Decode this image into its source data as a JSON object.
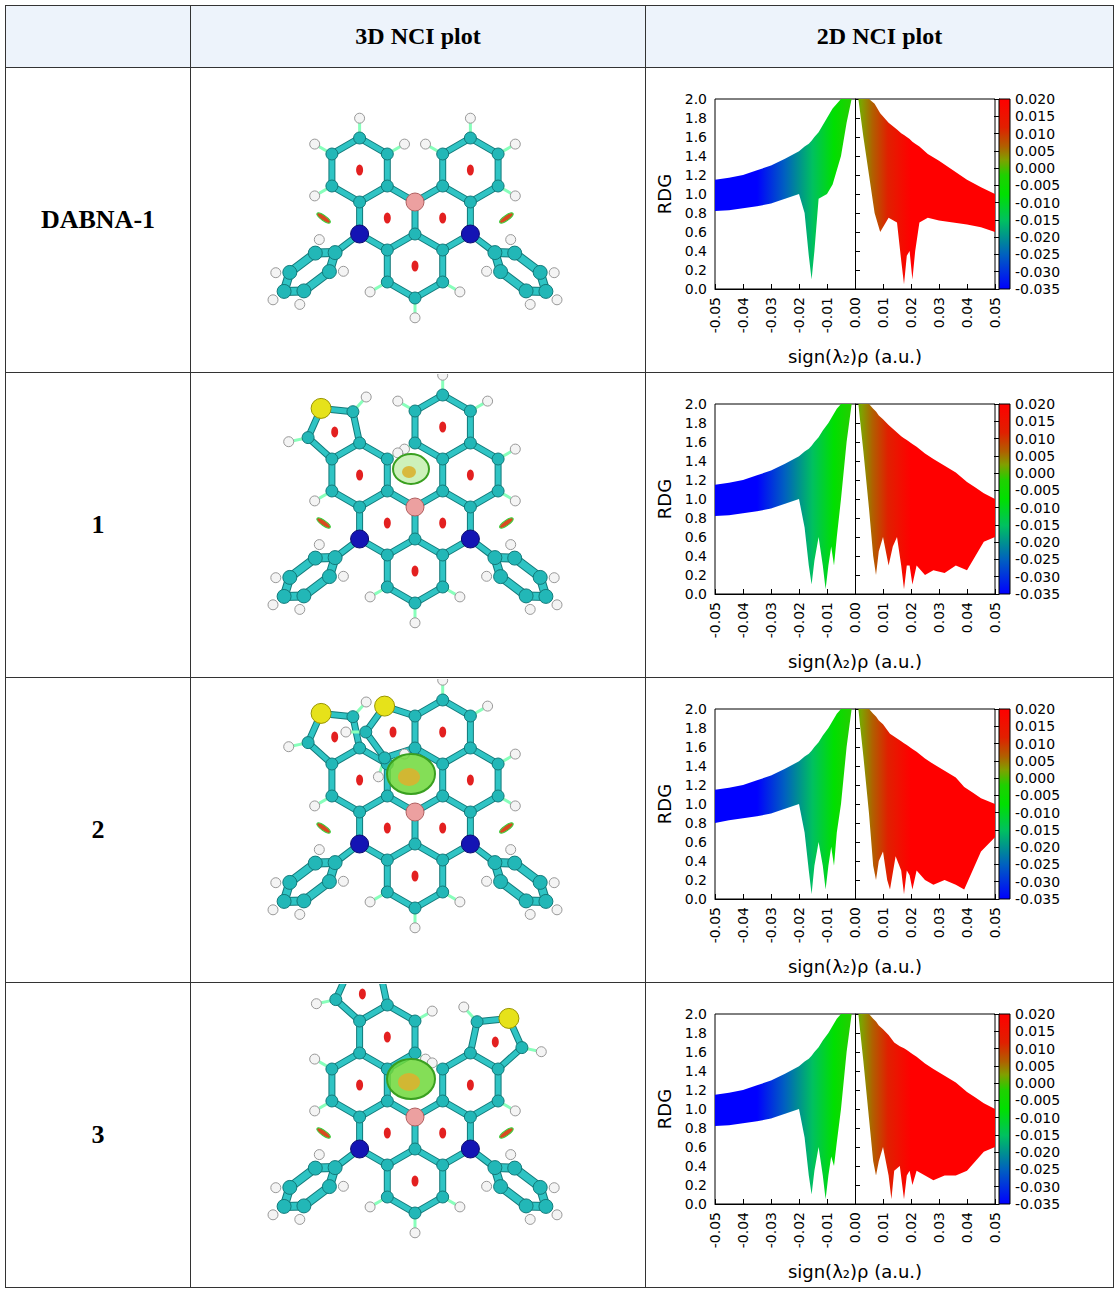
{
  "table": {
    "columns": [
      "3D NCI plot",
      "2D NCI plot"
    ],
    "rows": [
      "DABNA-1",
      "1",
      "2",
      "3"
    ]
  },
  "chart_data": [
    {
      "type": "area",
      "xlabel": "sign(λ₂)ρ (a.u.)",
      "ylabel": "RDG",
      "xlim": [
        -0.05,
        0.05
      ],
      "xticks": [
        -0.05,
        -0.04,
        -0.03,
        -0.02,
        -0.01,
        {
          "value": 0,
          "label": "0.00"
        },
        0.01,
        0.02,
        0.03,
        0.04,
        0.05
      ],
      "ylim": [
        0,
        2
      ],
      "yticks": [
        {
          "value": 0,
          "label": "0.0"
        },
        0.2,
        0.4,
        0.6,
        0.8,
        {
          "value": 1,
          "label": "1.0"
        },
        1.2,
        1.4,
        1.6,
        1.8,
        {
          "value": 2,
          "label": "2.0"
        }
      ],
      "colorbar": {
        "range": [
          -0.035,
          0.02
        ],
        "ticks": [
          {
            "value": 0.02,
            "label": "0.020"
          },
          {
            "value": 0.015,
            "label": "0.015"
          },
          {
            "value": 0.01,
            "label": "0.010"
          },
          {
            "value": 0.005,
            "label": "0.005"
          },
          {
            "value": 0,
            "label": "0.000"
          },
          {
            "value": -0.005,
            "label": "-0.005"
          },
          {
            "value": -0.01,
            "label": "-0.010"
          },
          {
            "value": -0.015,
            "label": "-0.015"
          },
          {
            "value": -0.02,
            "label": "-0.020"
          },
          {
            "value": -0.025,
            "label": "-0.025"
          },
          {
            "value": -0.03,
            "label": "-0.030"
          },
          {
            "value": -0.035,
            "label": "-0.035"
          }
        ]
      },
      "bands": [
        {
          "x": [
            -0.05,
            -0.045,
            -0.04,
            -0.035,
            -0.03,
            -0.025,
            -0.02,
            -0.018,
            -0.0165,
            -0.0155,
            -0.0145,
            -0.013,
            -0.01,
            -0.008,
            -0.005,
            -0.003,
            -0.0012
          ],
          "lower": [
            0.82,
            0.83,
            0.85,
            0.87,
            0.9,
            0.95,
            1.0,
            0.8,
            0.35,
            0.1,
            0.4,
            0.95,
            1.0,
            1.1,
            1.4,
            1.75,
            2.0
          ],
          "upper": [
            1.15,
            1.17,
            1.2,
            1.25,
            1.3,
            1.37,
            1.45,
            1.5,
            1.53,
            1.56,
            1.6,
            1.65,
            1.8,
            1.9,
            2.0,
            2.0,
            2.0
          ]
        },
        {
          "x": [
            0.0012,
            0.003,
            0.005,
            0.007,
            0.009,
            0.012,
            0.015,
            0.0165,
            0.0175,
            0.0185,
            0.0195,
            0.0205,
            0.0215,
            0.023,
            0.026,
            0.03,
            0.035,
            0.04,
            0.045,
            0.05
          ],
          "lower": [
            2.0,
            1.6,
            1.2,
            0.8,
            0.6,
            0.75,
            0.7,
            0.3,
            0.05,
            0.35,
            0.4,
            0.1,
            0.4,
            0.7,
            0.75,
            0.72,
            0.7,
            0.68,
            0.65,
            0.6
          ],
          "upper": [
            2.0,
            2.0,
            2.0,
            1.95,
            1.85,
            1.75,
            1.68,
            1.64,
            1.62,
            1.6,
            1.58,
            1.55,
            1.53,
            1.5,
            1.42,
            1.35,
            1.25,
            1.15,
            1.07,
            1.0
          ]
        }
      ]
    },
    {
      "type": "area",
      "xlabel": "sign(λ₂)ρ (a.u.)",
      "ylabel": "RDG",
      "xlim": [
        -0.05,
        0.05
      ],
      "xticks": [
        -0.05,
        -0.04,
        -0.03,
        -0.02,
        -0.01,
        {
          "value": 0,
          "label": "0.00"
        },
        0.01,
        0.02,
        0.03,
        0.04,
        0.05
      ],
      "ylim": [
        0,
        2
      ],
      "yticks": [
        {
          "value": 0,
          "label": "0.0"
        },
        0.2,
        0.4,
        0.6,
        0.8,
        {
          "value": 1,
          "label": "1.0"
        },
        1.2,
        1.4,
        1.6,
        1.8,
        {
          "value": 2,
          "label": "2.0"
        }
      ],
      "colorbar": {
        "range": [
          -0.035,
          0.02
        ],
        "ticks": [
          {
            "value": 0.02,
            "label": "0.020"
          },
          {
            "value": 0.015,
            "label": "0.015"
          },
          {
            "value": 0.01,
            "label": "0.010"
          },
          {
            "value": 0.005,
            "label": "0.005"
          },
          {
            "value": 0,
            "label": "0.000"
          },
          {
            "value": -0.005,
            "label": "-0.005"
          },
          {
            "value": -0.01,
            "label": "-0.010"
          },
          {
            "value": -0.015,
            "label": "-0.015"
          },
          {
            "value": -0.02,
            "label": "-0.020"
          },
          {
            "value": -0.025,
            "label": "-0.025"
          },
          {
            "value": -0.03,
            "label": "-0.030"
          },
          {
            "value": -0.035,
            "label": "-0.035"
          }
        ]
      },
      "bands": [
        {
          "x": [
            -0.05,
            -0.045,
            -0.04,
            -0.035,
            -0.03,
            -0.025,
            -0.02,
            -0.018,
            -0.0165,
            -0.0155,
            -0.0145,
            -0.013,
            -0.0115,
            -0.0105,
            -0.0095,
            -0.0085,
            -0.0075,
            -0.0065,
            -0.005,
            -0.003,
            -0.0012
          ],
          "lower": [
            0.82,
            0.83,
            0.85,
            0.87,
            0.9,
            0.95,
            1.0,
            0.7,
            0.3,
            0.1,
            0.35,
            0.6,
            0.3,
            0.05,
            0.3,
            0.5,
            0.3,
            0.6,
            1.0,
            1.6,
            2.0
          ],
          "upper": [
            1.15,
            1.17,
            1.2,
            1.25,
            1.3,
            1.37,
            1.45,
            1.5,
            1.53,
            1.56,
            1.6,
            1.65,
            1.72,
            1.76,
            1.8,
            1.85,
            1.9,
            1.95,
            2.0,
            2.0,
            2.0
          ]
        },
        {
          "x": [
            0.0012,
            0.003,
            0.005,
            0.0065,
            0.0075,
            0.0085,
            0.01,
            0.012,
            0.0135,
            0.015,
            0.0165,
            0.0175,
            0.0185,
            0.0195,
            0.0205,
            0.022,
            0.025,
            0.028,
            0.032,
            0.036,
            0.04,
            0.043,
            0.046,
            0.05
          ],
          "lower": [
            2.0,
            1.5,
            0.9,
            0.4,
            0.2,
            0.45,
            0.6,
            0.3,
            0.5,
            0.6,
            0.3,
            0.05,
            0.3,
            0.3,
            0.1,
            0.3,
            0.2,
            0.25,
            0.22,
            0.3,
            0.25,
            0.4,
            0.55,
            0.6
          ],
          "upper": [
            2.0,
            2.0,
            2.0,
            1.95,
            1.92,
            1.88,
            1.84,
            1.78,
            1.74,
            1.7,
            1.66,
            1.64,
            1.62,
            1.6,
            1.58,
            1.55,
            1.48,
            1.42,
            1.35,
            1.28,
            1.18,
            1.12,
            1.06,
            1.0
          ]
        }
      ]
    },
    {
      "type": "area",
      "xlabel": "sign(λ₂)ρ (a.u.)",
      "ylabel": "RDG",
      "xlim": [
        -0.05,
        0.05
      ],
      "xticks": [
        -0.05,
        -0.04,
        -0.03,
        -0.02,
        -0.01,
        {
          "value": 0,
          "label": "0.00"
        },
        0.01,
        0.02,
        0.03,
        0.04,
        0.05
      ],
      "ylim": [
        0,
        2
      ],
      "yticks": [
        {
          "value": 0,
          "label": "0.0"
        },
        0.2,
        0.4,
        0.6,
        0.8,
        {
          "value": 1,
          "label": "1.0"
        },
        1.2,
        1.4,
        1.6,
        1.8,
        {
          "value": 2,
          "label": "2.0"
        }
      ],
      "colorbar": {
        "range": [
          -0.035,
          0.02
        ],
        "ticks": [
          {
            "value": 0.02,
            "label": "0.020"
          },
          {
            "value": 0.015,
            "label": "0.015"
          },
          {
            "value": 0.01,
            "label": "0.010"
          },
          {
            "value": 0.005,
            "label": "0.005"
          },
          {
            "value": 0,
            "label": "0.000"
          },
          {
            "value": -0.005,
            "label": "-0.005"
          },
          {
            "value": -0.01,
            "label": "-0.010"
          },
          {
            "value": -0.015,
            "label": "-0.015"
          },
          {
            "value": -0.02,
            "label": "-0.020"
          },
          {
            "value": -0.025,
            "label": "-0.025"
          },
          {
            "value": -0.03,
            "label": "-0.030"
          },
          {
            "value": -0.035,
            "label": "-0.035"
          }
        ]
      },
      "bands": [
        {
          "x": [
            -0.05,
            -0.045,
            -0.04,
            -0.035,
            -0.03,
            -0.025,
            -0.02,
            -0.018,
            -0.0165,
            -0.0155,
            -0.0145,
            -0.013,
            -0.0115,
            -0.0105,
            -0.0095,
            -0.0085,
            -0.0075,
            -0.0065,
            -0.005,
            -0.003,
            -0.0012
          ],
          "lower": [
            0.8,
            0.83,
            0.85,
            0.87,
            0.9,
            0.95,
            1.0,
            0.7,
            0.3,
            0.05,
            0.35,
            0.6,
            0.35,
            0.1,
            0.35,
            0.55,
            0.35,
            0.7,
            1.0,
            1.6,
            2.0
          ],
          "upper": [
            1.15,
            1.17,
            1.2,
            1.25,
            1.3,
            1.37,
            1.45,
            1.5,
            1.53,
            1.56,
            1.6,
            1.65,
            1.72,
            1.76,
            1.8,
            1.85,
            1.9,
            1.95,
            2.0,
            2.0,
            2.0
          ]
        },
        {
          "x": [
            0.0012,
            0.003,
            0.005,
            0.0065,
            0.0075,
            0.0085,
            0.01,
            0.0115,
            0.0125,
            0.0145,
            0.0165,
            0.0175,
            0.0185,
            0.0195,
            0.0205,
            0.022,
            0.025,
            0.028,
            0.032,
            0.036,
            0.039,
            0.042,
            0.045,
            0.05
          ],
          "lower": [
            2.0,
            1.5,
            0.9,
            0.35,
            0.2,
            0.4,
            0.5,
            0.2,
            0.1,
            0.45,
            0.3,
            0.05,
            0.3,
            0.25,
            0.1,
            0.3,
            0.2,
            0.15,
            0.2,
            0.15,
            0.1,
            0.3,
            0.5,
            0.65
          ],
          "upper": [
            2.0,
            2.0,
            2.0,
            1.95,
            1.92,
            1.88,
            1.84,
            1.78,
            1.74,
            1.7,
            1.66,
            1.64,
            1.62,
            1.6,
            1.58,
            1.55,
            1.48,
            1.42,
            1.35,
            1.28,
            1.18,
            1.12,
            1.06,
            1.0
          ]
        }
      ]
    },
    {
      "type": "area",
      "xlabel": "sign(λ₂)ρ (a.u.)",
      "ylabel": "RDG",
      "xlim": [
        -0.05,
        0.05
      ],
      "xticks": [
        -0.05,
        -0.04,
        -0.03,
        -0.02,
        -0.01,
        {
          "value": 0,
          "label": "0.00"
        },
        0.01,
        0.02,
        0.03,
        0.04,
        0.05
      ],
      "ylim": [
        0,
        2
      ],
      "yticks": [
        {
          "value": 0,
          "label": "0.0"
        },
        0.2,
        0.4,
        0.6,
        0.8,
        {
          "value": 1,
          "label": "1.0"
        },
        1.2,
        1.4,
        1.6,
        1.8,
        {
          "value": 2,
          "label": "2.0"
        }
      ],
      "colorbar": {
        "range": [
          -0.035,
          0.02
        ],
        "ticks": [
          {
            "value": 0.02,
            "label": "0.020"
          },
          {
            "value": 0.015,
            "label": "0.015"
          },
          {
            "value": 0.01,
            "label": "0.010"
          },
          {
            "value": 0.005,
            "label": "0.005"
          },
          {
            "value": 0,
            "label": "0.000"
          },
          {
            "value": -0.005,
            "label": "-0.005"
          },
          {
            "value": -0.01,
            "label": "-0.010"
          },
          {
            "value": -0.015,
            "label": "-0.015"
          },
          {
            "value": -0.02,
            "label": "-0.020"
          },
          {
            "value": -0.025,
            "label": "-0.025"
          },
          {
            "value": -0.03,
            "label": "-0.030"
          },
          {
            "value": -0.035,
            "label": "-0.035"
          }
        ]
      },
      "bands": [
        {
          "x": [
            -0.05,
            -0.045,
            -0.04,
            -0.035,
            -0.03,
            -0.025,
            -0.02,
            -0.018,
            -0.0165,
            -0.0155,
            -0.0145,
            -0.013,
            -0.0115,
            -0.0105,
            -0.0095,
            -0.0085,
            -0.0075,
            -0.0065,
            -0.005,
            -0.003,
            -0.0012
          ],
          "lower": [
            0.82,
            0.83,
            0.85,
            0.87,
            0.9,
            0.95,
            1.0,
            0.7,
            0.3,
            0.1,
            0.35,
            0.6,
            0.3,
            0.05,
            0.3,
            0.5,
            0.4,
            0.65,
            1.0,
            1.6,
            2.0
          ],
          "upper": [
            1.15,
            1.17,
            1.2,
            1.25,
            1.3,
            1.37,
            1.45,
            1.5,
            1.53,
            1.56,
            1.6,
            1.65,
            1.72,
            1.76,
            1.8,
            1.85,
            1.9,
            1.95,
            2.0,
            2.0,
            2.0
          ]
        },
        {
          "x": [
            0.0012,
            0.003,
            0.005,
            0.0065,
            0.0075,
            0.0085,
            0.01,
            0.012,
            0.013,
            0.014,
            0.016,
            0.0175,
            0.0185,
            0.0195,
            0.0205,
            0.022,
            0.025,
            0.028,
            0.032,
            0.036,
            0.04,
            0.043,
            0.046,
            0.05
          ],
          "lower": [
            2.0,
            1.5,
            0.9,
            0.45,
            0.3,
            0.45,
            0.6,
            0.3,
            0.05,
            0.35,
            0.4,
            0.05,
            0.3,
            0.35,
            0.2,
            0.35,
            0.3,
            0.25,
            0.3,
            0.3,
            0.35,
            0.45,
            0.55,
            0.6
          ],
          "upper": [
            2.0,
            2.0,
            2.0,
            1.95,
            1.92,
            1.88,
            1.84,
            1.78,
            1.74,
            1.7,
            1.66,
            1.64,
            1.62,
            1.6,
            1.58,
            1.55,
            1.48,
            1.42,
            1.35,
            1.28,
            1.18,
            1.12,
            1.06,
            1.0
          ]
        }
      ]
    }
  ]
}
